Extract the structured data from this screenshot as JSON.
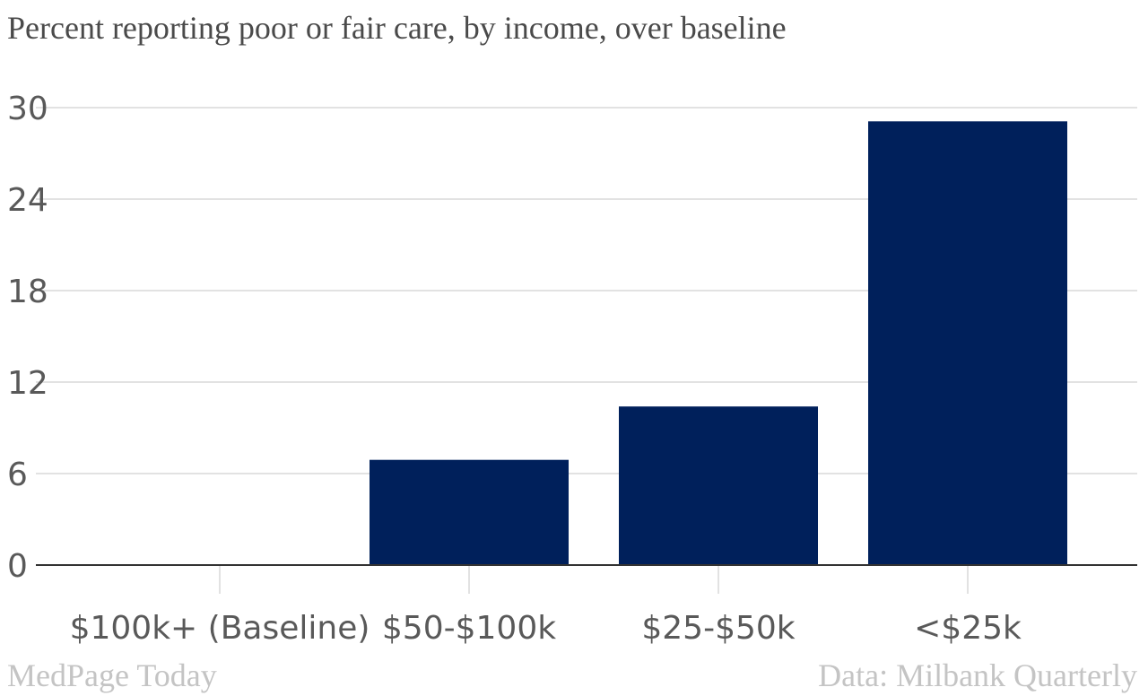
{
  "chart_data": {
    "type": "bar",
    "title": "Percent reporting poor or fair care, by income, over baseline",
    "categories": [
      "$100k+ (Baseline)",
      "$50-$100k",
      "$25-$50k",
      "<$25k"
    ],
    "values": [
      0,
      6.9,
      10.4,
      29.1
    ],
    "xlabel": "",
    "ylabel": "",
    "ylim": [
      0,
      30
    ],
    "yticks": [
      0,
      6,
      12,
      18,
      24,
      30
    ],
    "grid": true,
    "bar_color": "#00205b"
  },
  "footer": {
    "source_left": "MedPage Today",
    "source_right": "Data: Milbank Quarterly"
  }
}
